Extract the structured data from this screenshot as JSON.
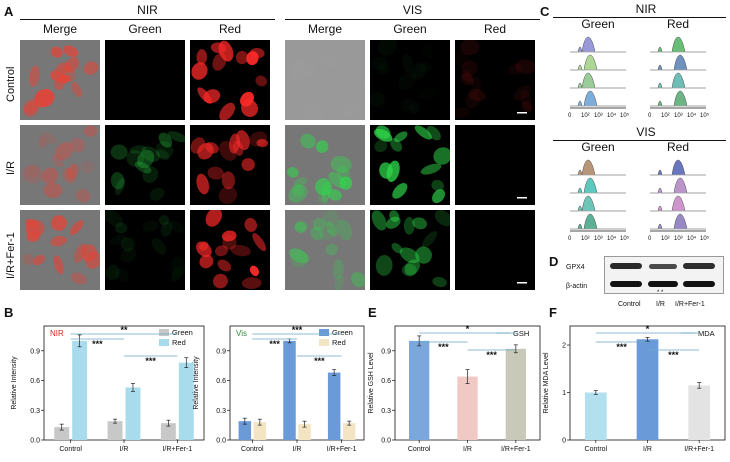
{
  "panels": {
    "A": "A",
    "B": "B",
    "C": "C",
    "D": "D",
    "E": "E",
    "F": "F"
  },
  "panel_a": {
    "nir_header": "NIR",
    "vis_header": "VIS",
    "columns": [
      "Merge",
      "Green",
      "Red",
      "Merge",
      "Green",
      "Red"
    ],
    "rows": [
      "Control",
      "I/R",
      "I/R+Fer-1"
    ]
  },
  "panel_c": {
    "nir_header": "NIR",
    "vis_header": "VIS",
    "green_label": "Green",
    "red_label": "Red",
    "ticks": [
      "0",
      "10²",
      "10³",
      "10⁴",
      "10⁵"
    ],
    "nir_green_colors": [
      "#8f8fd6",
      "#a6d38a",
      "#8fc78e",
      "#6fa6d8"
    ],
    "nir_red_colors": [
      "#57b868",
      "#5f86b8",
      "#5fb8b0",
      "#5fae7a"
    ],
    "vis_green_colors": [
      "#b08a6a",
      "#4cc4b8",
      "#5dbfb0",
      "#4aa88a"
    ],
    "vis_red_colors": [
      "#5a68b8",
      "#b48ac4",
      "#c98bc8",
      "#8f7cc0"
    ]
  },
  "panel_d": {
    "gpx4": "GPX4",
    "actin": "β-actin",
    "groups": [
      "Control",
      "I/R",
      "I/R+Fer-1"
    ],
    "marks": "* *"
  },
  "chart_data": [
    {
      "id": "B1",
      "type": "bar",
      "categories": [
        "Control",
        "I/R",
        "I/R+Fer-1"
      ],
      "series": [
        {
          "name": "Green",
          "values": [
            0.13,
            0.19,
            0.17
          ],
          "errors": [
            0.03,
            0.02,
            0.03
          ],
          "color": "#c8c8c8"
        },
        {
          "name": "Red",
          "values": [
            1.0,
            0.53,
            0.78
          ],
          "errors": [
            0.06,
            0.04,
            0.05
          ],
          "color": "#a8dcec"
        }
      ],
      "ylabel": "Relative Intensity",
      "ylim": [
        0,
        1.15
      ],
      "yticks": [
        "0.0",
        "0.3",
        "0.6",
        "0.9"
      ],
      "tag": "NIR",
      "legend_position": "top-right",
      "significance": [
        "**",
        "***",
        "***"
      ]
    },
    {
      "id": "B2",
      "type": "bar",
      "categories": [
        "Control",
        "I/R",
        "I/R+Fer-1"
      ],
      "series": [
        {
          "name": "Green",
          "values": [
            0.19,
            1.0,
            0.68
          ],
          "errors": [
            0.03,
            0.02,
            0.03
          ],
          "color": "#6a9bd8"
        },
        {
          "name": "Red",
          "values": [
            0.18,
            0.16,
            0.17
          ],
          "errors": [
            0.03,
            0.03,
            0.02
          ],
          "color": "#f3e4c4"
        }
      ],
      "ylabel": "Relative Intensity",
      "ylim": [
        0,
        1.15
      ],
      "yticks": [
        "0.0",
        "0.3",
        "0.6",
        "0.9"
      ],
      "tag": "Vis",
      "legend_position": "top-right",
      "significance": [
        "***",
        "***",
        "***"
      ]
    },
    {
      "id": "E",
      "type": "bar",
      "categories": [
        "Control",
        "I/R",
        "I/R+Fer-1"
      ],
      "values": [
        1.0,
        0.64,
        0.92
      ],
      "errors": [
        0.05,
        0.07,
        0.04
      ],
      "colors": [
        "#7ba7dc",
        "#f0c8c4",
        "#c9c9b9"
      ],
      "ylabel": "Relative GSH Level",
      "ylim": [
        0,
        1.15
      ],
      "yticks": [
        "0.0",
        "0.3",
        "0.6",
        "0.9"
      ],
      "legend": "GSH",
      "significance": [
        "*",
        "***",
        "***"
      ]
    },
    {
      "id": "F",
      "type": "bar",
      "categories": [
        "Control",
        "I/R",
        "I/R+Fer-1"
      ],
      "values": [
        1.0,
        2.12,
        1.15
      ],
      "errors": [
        0.04,
        0.04,
        0.06
      ],
      "colors": [
        "#b3e0ee",
        "#6a9bd8",
        "#e3e3e3"
      ],
      "ylabel": "Relative MDA Level",
      "ylim": [
        0,
        2.4
      ],
      "yticks": [
        "0",
        "1",
        "2"
      ],
      "legend": "MDA",
      "significance": [
        "*",
        "***",
        "***"
      ]
    }
  ]
}
